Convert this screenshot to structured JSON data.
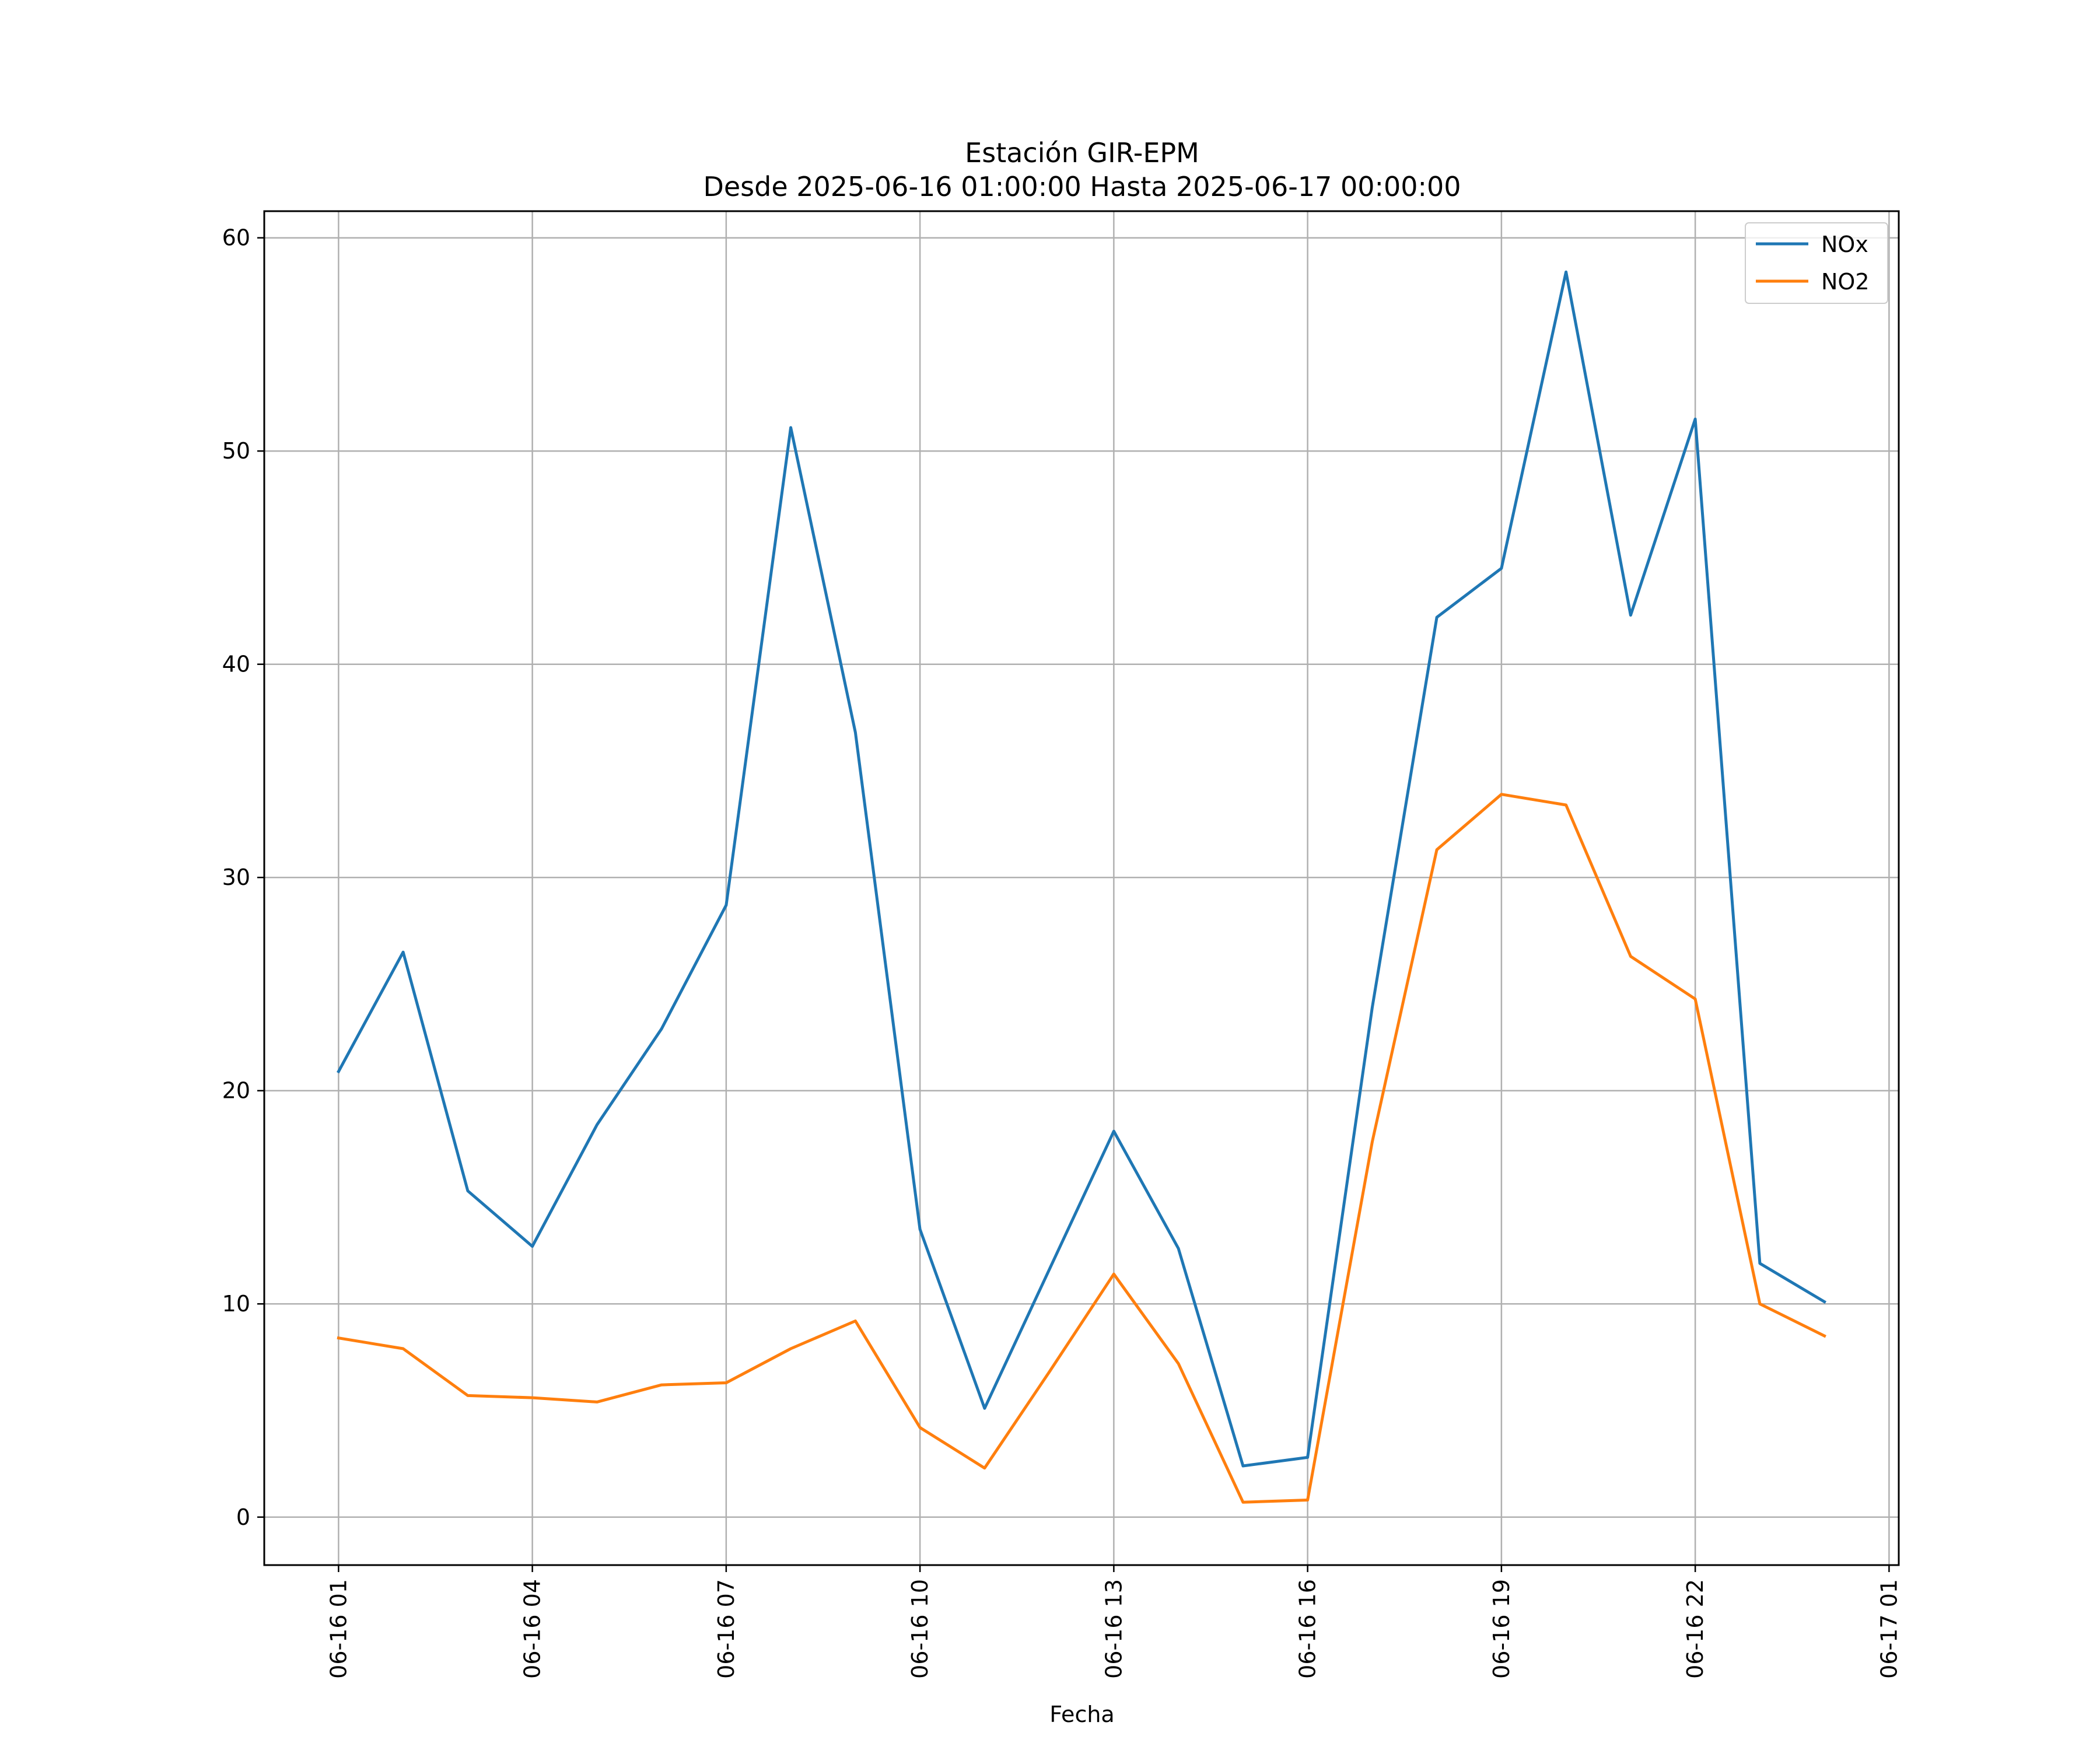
{
  "chart_data": {
    "type": "line",
    "title": "Estación GIR-EPM",
    "subtitle": "Desde 2025-06-16 01:00:00 Hasta 2025-06-17 00:00:00",
    "xlabel": "Fecha",
    "ylabel": "",
    "x": [
      "2025-06-16 01:00",
      "2025-06-16 02:00",
      "2025-06-16 03:00",
      "2025-06-16 04:00",
      "2025-06-16 05:00",
      "2025-06-16 06:00",
      "2025-06-16 07:00",
      "2025-06-16 08:00",
      "2025-06-16 09:00",
      "2025-06-16 10:00",
      "2025-06-16 11:00",
      "2025-06-16 12:00",
      "2025-06-16 13:00",
      "2025-06-16 14:00",
      "2025-06-16 15:00",
      "2025-06-16 16:00",
      "2025-06-16 17:00",
      "2025-06-16 18:00",
      "2025-06-16 19:00",
      "2025-06-16 20:00",
      "2025-06-16 21:00",
      "2025-06-16 22:00",
      "2025-06-16 23:00",
      "2025-06-17 00:00"
    ],
    "series": [
      {
        "name": "NOx",
        "color": "#1f77b4",
        "values": [
          20.9,
          26.5,
          15.3,
          12.7,
          18.4,
          22.9,
          28.7,
          51.1,
          36.8,
          13.5,
          5.1,
          11.6,
          18.1,
          12.6,
          2.4,
          2.8,
          23.9,
          42.2,
          44.5,
          58.4,
          42.3,
          51.5,
          11.9,
          10.1
        ]
      },
      {
        "name": "NO2",
        "color": "#ff7f0e",
        "values": [
          8.4,
          7.9,
          5.7,
          5.6,
          5.4,
          6.2,
          6.3,
          7.9,
          9.2,
          4.2,
          2.3,
          6.8,
          11.4,
          7.2,
          0.7,
          0.8,
          17.6,
          31.3,
          33.9,
          33.4,
          26.3,
          24.3,
          10.0,
          8.5
        ]
      }
    ],
    "ylim": [
      -2.25,
      61.25
    ],
    "xlim": [
      "2025-06-15 23:51",
      "2025-06-17 01:09"
    ],
    "y_ticks": [
      0,
      10,
      20,
      30,
      40,
      50,
      60
    ],
    "y_tick_labels": [
      "0",
      "10",
      "20",
      "30",
      "40",
      "50",
      "60"
    ],
    "x_ticks": [
      "2025-06-16 01:00",
      "2025-06-16 04:00",
      "2025-06-16 07:00",
      "2025-06-16 10:00",
      "2025-06-16 13:00",
      "2025-06-16 16:00",
      "2025-06-16 19:00",
      "2025-06-16 22:00",
      "2025-06-17 01:00"
    ],
    "x_tick_labels": [
      "06-16 01",
      "06-16 04",
      "06-16 07",
      "06-16 10",
      "06-16 13",
      "06-16 16",
      "06-16 19",
      "06-16 22",
      "06-17 01"
    ],
    "grid": true,
    "legend_position": "top-right",
    "colors": {
      "grid": "#b0b0b0",
      "axes": "#000000"
    }
  }
}
